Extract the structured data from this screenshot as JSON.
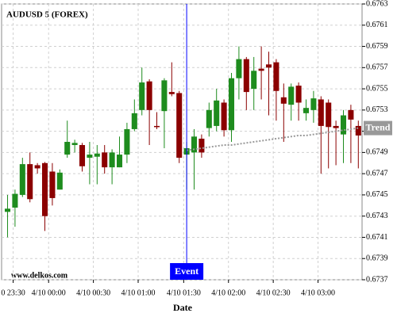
{
  "chart_data": {
    "type": "candlestick",
    "title": "AUDUSD 5 (FOREX)",
    "xlabel": "Date",
    "watermark": "www.delkos.com",
    "up_color": "#1e8c1e",
    "down_color": "#8b0000",
    "grid": true,
    "open": [
      0.67434,
      0.67438,
      0.6745,
      0.67479,
      0.67478,
      0.6748,
      0.67472,
      0.67455,
      0.67488,
      0.67497,
      0.67497,
      0.67485,
      0.67486,
      0.6749,
      0.67476,
      0.67476,
      0.67488,
      0.67512,
      0.6753,
      0.67557,
      0.67515,
      0.67529,
      0.67547,
      0.67546,
      0.67488,
      0.6749,
      0.67503,
      0.67513,
      0.67515,
      0.67537,
      0.67511,
      0.6756,
      0.67578,
      0.6755,
      0.67569,
      0.67573,
      0.67575,
      0.67542,
      0.67535,
      0.67553,
      0.67527,
      0.6753,
      0.6754,
      0.67537,
      0.67515,
      0.67507,
      0.6753,
      0.67515
    ],
    "high": [
      0.6745,
      0.67455,
      0.67485,
      0.6749,
      0.6748,
      0.67481,
      0.6748,
      0.67474,
      0.6752,
      0.67502,
      0.67499,
      0.675,
      0.67497,
      0.67497,
      0.67493,
      0.67505,
      0.67518,
      0.6754,
      0.6757,
      0.67559,
      0.67528,
      0.6756,
      0.67575,
      0.67548,
      0.675,
      0.67512,
      0.67507,
      0.67537,
      0.6755,
      0.6754,
      0.67565,
      0.6759,
      0.6758,
      0.6758,
      0.6759,
      0.67585,
      0.67578,
      0.67555,
      0.67555,
      0.67556,
      0.6754,
      0.67548,
      0.67543,
      0.6754,
      0.6752,
      0.6753,
      0.67535,
      0.6752
    ],
    "low": [
      0.6741,
      0.6742,
      0.67448,
      0.67443,
      0.6747,
      0.67416,
      0.6744,
      0.67455,
      0.67485,
      0.6749,
      0.67472,
      0.6746,
      0.6746,
      0.6747,
      0.6746,
      0.67476,
      0.6748,
      0.6751,
      0.67525,
      0.67497,
      0.67512,
      0.67494,
      0.67543,
      0.6748,
      0.67455,
      0.67455,
      0.67485,
      0.67505,
      0.6751,
      0.67505,
      0.675,
      0.6754,
      0.6753,
      0.6753,
      0.6754,
      0.67525,
      0.6752,
      0.675,
      0.6752,
      0.6752,
      0.6752,
      0.67518,
      0.6747,
      0.67475,
      0.67478,
      0.6748,
      0.6748,
      0.67475
    ],
    "close": [
      0.67437,
      0.67451,
      0.67479,
      0.67446,
      0.67475,
      0.6743,
      0.67447,
      0.67471,
      0.675,
      0.67499,
      0.67477,
      0.67488,
      0.67489,
      0.67476,
      0.6749,
      0.67488,
      0.67512,
      0.67527,
      0.67556,
      0.6753,
      0.67514,
      0.67558,
      0.67545,
      0.67485,
      0.67494,
      0.67505,
      0.6749,
      0.6753,
      0.67539,
      0.67511,
      0.6756,
      0.67578,
      0.67547,
      0.67567,
      0.67567,
      0.6757,
      0.67548,
      0.67536,
      0.67552,
      0.67537,
      0.67532,
      0.67541,
      0.67515,
      0.67514,
      0.67513,
      0.67525,
      0.67521,
      0.67506
    ],
    "trend": {
      "name": "Trend",
      "color": "#999999",
      "values": [
        null,
        null,
        null,
        null,
        null,
        null,
        null,
        null,
        null,
        null,
        null,
        null,
        null,
        null,
        null,
        null,
        null,
        null,
        null,
        null,
        null,
        null,
        null,
        null,
        0.67492,
        0.67493,
        0.67494,
        0.67495,
        0.67496,
        0.67497,
        0.67497,
        0.67498,
        0.67499,
        0.675,
        0.67501,
        0.67502,
        0.67503,
        0.67504,
        0.67505,
        0.67506,
        0.67506,
        0.67507,
        0.67508,
        0.67509,
        0.6751,
        0.67511,
        0.67512,
        0.67513
      ]
    },
    "event": {
      "label": "Event",
      "index": 24,
      "color": "#0000ff"
    },
    "xlim": [
      -0.8,
      47.5
    ],
    "xticks": [
      {
        "value": 0.75,
        "label": "0 23:30"
      },
      {
        "value": 5.5,
        "label": "4/10 00:00"
      },
      {
        "value": 11.5,
        "label": "4/10 00:30"
      },
      {
        "value": 17.5,
        "label": "4/10 01:00"
      },
      {
        "value": 23.6,
        "label": "4/10 01:30"
      },
      {
        "value": 29.6,
        "label": "4/10 02:00"
      },
      {
        "value": 35.6,
        "label": "4/10 02:30"
      },
      {
        "value": 41.6,
        "label": "4/10 03:00"
      }
    ],
    "ylim": [
      0.6737,
      0.6763
    ],
    "yticks": [
      0.6737,
      0.6739,
      0.6741,
      0.6743,
      0.6745,
      0.6747,
      0.6749,
      0.6751,
      0.6753,
      0.6755,
      0.6757,
      0.6759,
      0.6761,
      0.6763
    ]
  }
}
